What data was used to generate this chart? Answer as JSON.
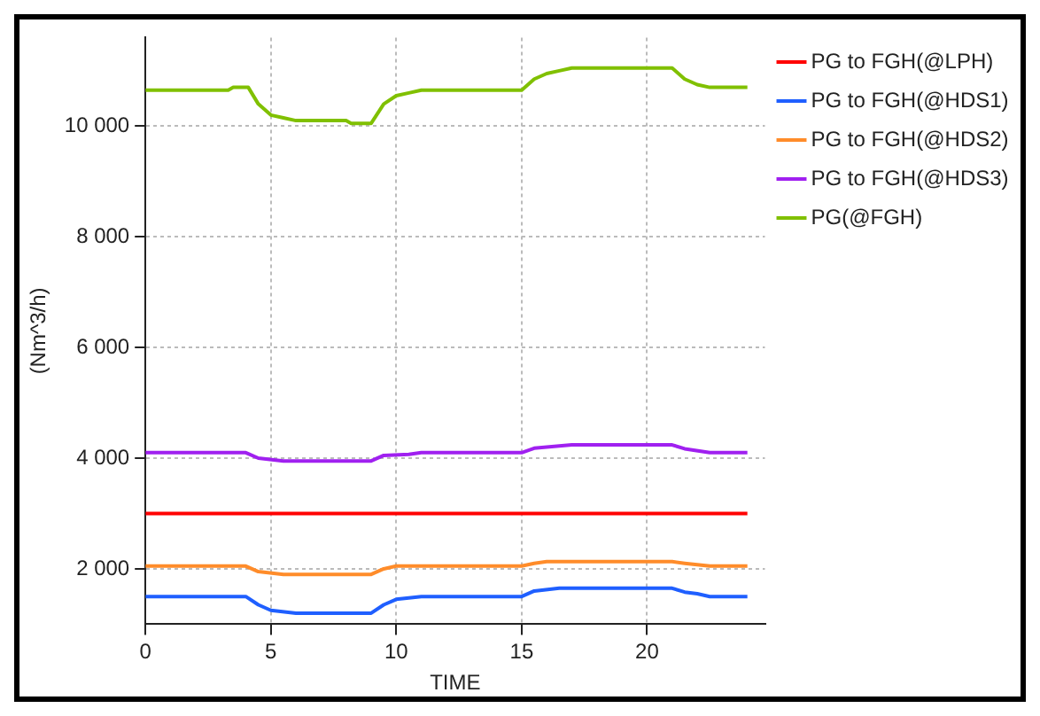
{
  "chart_data": {
    "type": "line",
    "xlabel": "TIME",
    "ylabel": "(Nm^3/h)",
    "xlim": [
      0,
      24.7
    ],
    "xticks": [
      0,
      5,
      10,
      15,
      20
    ],
    "ylim": [
      1000,
      11600
    ],
    "yticks": [
      {
        "value": 2000,
        "label": "2 000"
      },
      {
        "value": 4000,
        "label": "4 000"
      },
      {
        "value": 6000,
        "label": "6 000"
      },
      {
        "value": 8000,
        "label": "8 000"
      },
      {
        "value": 10000,
        "label": "10 000"
      }
    ],
    "grid": true,
    "legend": "right",
    "marker": "none",
    "line_style": "solid",
    "series": [
      {
        "name": "PG to FGH(@LPH)",
        "color": "#ff0000",
        "x": [
          0,
          24
        ],
        "values": [
          3000,
          3000
        ]
      },
      {
        "name": "PG to FGH(@HDS1)",
        "color": "#1f5fff",
        "x": [
          0,
          4,
          4.5,
          5,
          6,
          9,
          9.5,
          10,
          11,
          15,
          15.5,
          16.5,
          21,
          21.5,
          22,
          22.5,
          24
        ],
        "values": [
          1500,
          1500,
          1350,
          1250,
          1200,
          1200,
          1350,
          1450,
          1500,
          1500,
          1600,
          1650,
          1650,
          1580,
          1550,
          1500,
          1500
        ]
      },
      {
        "name": "PG to FGH(@HDS2)",
        "color": "#ff8c2a",
        "x": [
          0,
          4,
          4.5,
          5.5,
          9,
          9.5,
          10,
          15,
          15.5,
          16,
          21,
          21.5,
          22.5,
          24
        ],
        "values": [
          2050,
          2050,
          1950,
          1900,
          1900,
          2000,
          2050,
          2050,
          2100,
          2130,
          2130,
          2100,
          2050,
          2050
        ]
      },
      {
        "name": "PG to FGH(@HDS3)",
        "color": "#a020f0",
        "x": [
          0,
          4,
          4.5,
          5.5,
          9,
          9.5,
          10.5,
          11,
          15,
          15.5,
          17,
          21,
          21.5,
          22.5,
          24
        ],
        "values": [
          4100,
          4100,
          4000,
          3950,
          3950,
          4050,
          4070,
          4100,
          4100,
          4180,
          4240,
          4240,
          4170,
          4100,
          4100
        ]
      },
      {
        "name": "PG(@FGH)",
        "color": "#80c000",
        "x": [
          0,
          3.3,
          3.5,
          4.1,
          4.5,
          5,
          5.5,
          6,
          8,
          8.2,
          9,
          9.5,
          10,
          10.5,
          11,
          15,
          15.5,
          16,
          16.5,
          17,
          21,
          21.5,
          22,
          22.5,
          24
        ],
        "values": [
          10650,
          10650,
          10700,
          10700,
          10400,
          10200,
          10150,
          10100,
          10100,
          10050,
          10050,
          10400,
          10550,
          10600,
          10650,
          10650,
          10850,
          10950,
          11000,
          11050,
          11050,
          10850,
          10750,
          10700,
          10700
        ]
      }
    ]
  }
}
